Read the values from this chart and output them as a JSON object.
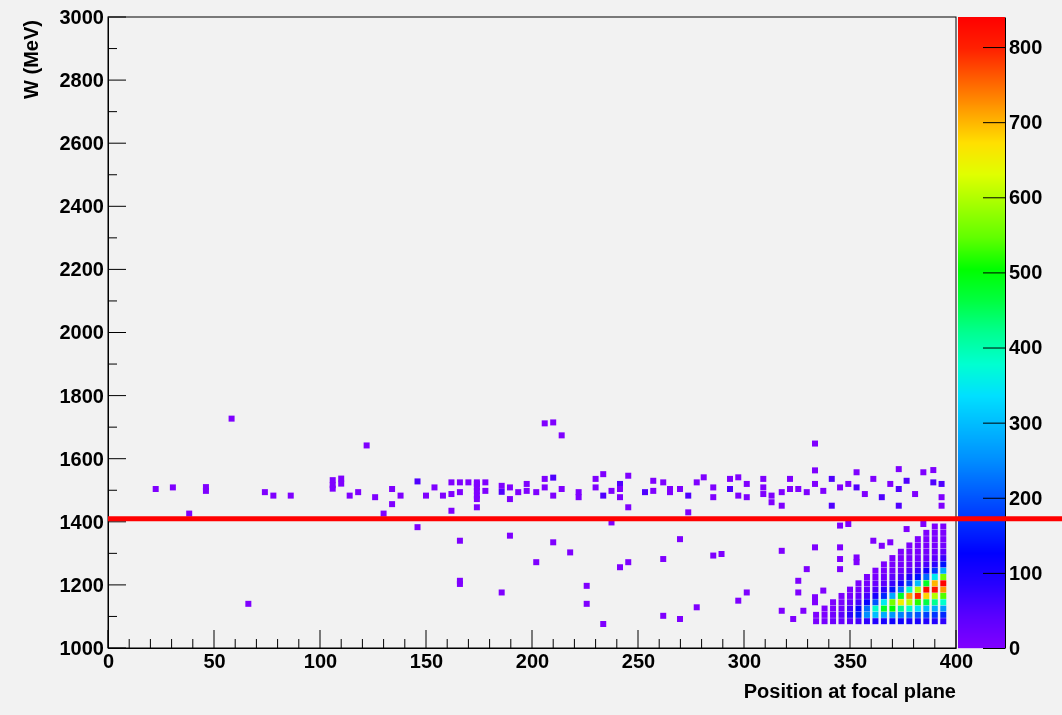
{
  "chart_data": {
    "type": "scatter",
    "xlabel": "Position at focal plane",
    "ylabel": "W (MeV)",
    "xlim": [
      0,
      400
    ],
    "xticks": [
      0,
      50,
      100,
      150,
      200,
      250,
      300,
      350,
      400
    ],
    "ylim": [
      1000,
      3000
    ],
    "yticks": [
      1000,
      1200,
      1400,
      1600,
      1800,
      2000,
      2200,
      2400,
      2600,
      2800,
      3000
    ],
    "clim": [
      0,
      840
    ],
    "cticks": [
      0,
      100,
      200,
      300,
      400,
      500,
      600,
      700,
      800
    ],
    "marker": "square",
    "ref_lines": [
      {
        "axis": "y",
        "value": 1410,
        "color": "#ff0000"
      }
    ],
    "series": [
      {
        "x": [
          334,
          334,
          338,
          338,
          338,
          342,
          342,
          342,
          342,
          346,
          346,
          346,
          346,
          346,
          350,
          350,
          350,
          350,
          350,
          350,
          354,
          354,
          354,
          354,
          354,
          354,
          354,
          358,
          358,
          358,
          358,
          358,
          358,
          358,
          358,
          362,
          362,
          362,
          362,
          362,
          362,
          362,
          362,
          362,
          366,
          366,
          366,
          366,
          366,
          366,
          366,
          366,
          366,
          366,
          370,
          370,
          370,
          370,
          370,
          370,
          370,
          370,
          370,
          370,
          370,
          374,
          374,
          374,
          374,
          374,
          374,
          374,
          374,
          374,
          374,
          374,
          374,
          378,
          378,
          378,
          378,
          378,
          378,
          378,
          378,
          378,
          378,
          378,
          378,
          378,
          382,
          382,
          382,
          382,
          382,
          382,
          382,
          382,
          382,
          382,
          382,
          382,
          382,
          382,
          386,
          386,
          386,
          386,
          386,
          386,
          386,
          386,
          386,
          386,
          386,
          386,
          386,
          386,
          386,
          390,
          390,
          390,
          390,
          390,
          390,
          390,
          390,
          390,
          390,
          390,
          390,
          390,
          390,
          390,
          390,
          394,
          394,
          394,
          394,
          394,
          394,
          394,
          394,
          394,
          394,
          394,
          394,
          394,
          394,
          394,
          394,
          22.5,
          30.6,
          46.2,
          46.2,
          38.3,
          58.3,
          66.2,
          74,
          78,
          86.2,
          106,
          106,
          106,
          110,
          110,
          114,
          118,
          122,
          126,
          130,
          134,
          134,
          138,
          146,
          146,
          150,
          154,
          158,
          162,
          162,
          162,
          166,
          170,
          174,
          166,
          166,
          166,
          166,
          174,
          174,
          174,
          174,
          174,
          174,
          178,
          178,
          185.7,
          185.7,
          189.6,
          189.6,
          189.6,
          185.7,
          193.5,
          197.5,
          197.5,
          206,
          210,
          214,
          206,
          210,
          206,
          202,
          210,
          214,
          222,
          222,
          230,
          230,
          233.6,
          233.6,
          237.5,
          241.5,
          241.5,
          245.4,
          241.5,
          245.4,
          253.3,
          257.2,
          261.9,
          257.2,
          265.1,
          265.1,
          269.8,
          273.7,
          273.7,
          277.7,
          281,
          285.5,
          285.5,
          293.4,
          293.4,
          297.3,
          297.3,
          301.3,
          301.3,
          309.1,
          309.1,
          309.1,
          313,
          313,
          317.8,
          317.8,
          321.7,
          321.7,
          325.6,
          329.6,
          333.5,
          333.5,
          333.5,
          337.4,
          341.4,
          341.4,
          345.3,
          349.2,
          353.1,
          353.1,
          357,
          361,
          365,
          369,
          373,
          373,
          373,
          376.7,
          380.7,
          384.6,
          389.3,
          389.3,
          393.2,
          393.2,
          393.2,
          237.5,
          210,
          218,
          202,
          245.4,
          241.5,
          269.8,
          261.9,
          285.5,
          289.4,
          225.8,
          225.8,
          233.6,
          261.9,
          269.8,
          277.7,
          297.3,
          301.3,
          317.8,
          317.8,
          325.6,
          325.6,
          329.6,
          333.5,
          345.3,
          345.3,
          345.3,
          345.3,
          349.2,
          353.1,
          353.1,
          361,
          365,
          369,
          376.7,
          384.6,
          337.4,
          333.5,
          333.5,
          323.2,
          328
        ],
        "values": [
          1085,
          1105,
          1085,
          1105,
          1125,
          1085,
          1105,
          1125,
          1145,
          1085,
          1105,
          1125,
          1145,
          1165,
          1085,
          1105,
          1125,
          1145,
          1165,
          1185,
          1085,
          1105,
          1125,
          1145,
          1165,
          1185,
          1205,
          1085,
          1105,
          1125,
          1145,
          1165,
          1185,
          1205,
          1225,
          1085,
          1105,
          1125,
          1145,
          1165,
          1185,
          1205,
          1225,
          1245,
          1085,
          1105,
          1125,
          1145,
          1165,
          1185,
          1205,
          1225,
          1245,
          1265,
          1085,
          1105,
          1125,
          1145,
          1165,
          1185,
          1205,
          1225,
          1245,
          1265,
          1285,
          1085,
          1105,
          1125,
          1145,
          1165,
          1185,
          1205,
          1225,
          1245,
          1265,
          1285,
          1305,
          1085,
          1105,
          1125,
          1145,
          1165,
          1185,
          1205,
          1225,
          1245,
          1265,
          1285,
          1305,
          1325,
          1085,
          1105,
          1125,
          1145,
          1165,
          1185,
          1205,
          1225,
          1245,
          1265,
          1285,
          1305,
          1325,
          1345,
          1085,
          1105,
          1125,
          1145,
          1165,
          1185,
          1205,
          1225,
          1245,
          1265,
          1285,
          1305,
          1325,
          1345,
          1365,
          1085,
          1105,
          1125,
          1145,
          1165,
          1185,
          1205,
          1225,
          1245,
          1265,
          1285,
          1305,
          1325,
          1345,
          1365,
          1385,
          1085,
          1105,
          1125,
          1145,
          1165,
          1185,
          1205,
          1225,
          1245,
          1265,
          1285,
          1305,
          1325,
          1345,
          1365,
          1385,
          1504,
          1509,
          1510,
          1498,
          1426,
          1727,
          1140,
          1494,
          1483,
          1483,
          1532,
          1516,
          1505,
          1537,
          1521,
          1483,
          1494,
          1642,
          1478,
          1426,
          1504,
          1456,
          1483,
          1528,
          1383,
          1483,
          1509,
          1483,
          1488,
          1435,
          1525,
          1525,
          1525,
          1525,
          1494,
          1340,
          1213,
          1203,
          1520,
          1509,
          1498,
          1483,
          1472,
          1446,
          1525,
          1498,
          1514,
          1495,
          1509,
          1472,
          1356,
          1176,
          1494,
          1520,
          1498,
          1712,
          1715,
          1674,
          1536,
          1540,
          1509,
          1494,
          1483,
          1504,
          1494,
          1478,
          1536,
          1509,
          1551,
          1483,
          1498,
          1520,
          1504,
          1546,
          1478,
          1446,
          1494,
          1530,
          1525,
          1498,
          1504,
          1494,
          1504,
          1483,
          1430,
          1525,
          1541,
          1509,
          1478,
          1504,
          1536,
          1541,
          1483,
          1520,
          1478,
          1536,
          1509,
          1488,
          1483,
          1462,
          1494,
          1451,
          1536,
          1504,
          1504,
          1494,
          1648,
          1563,
          1520,
          1498,
          1536,
          1451,
          1509,
          1520,
          1509,
          1557,
          1488,
          1536,
          1478,
          1520,
          1567,
          1504,
          1451,
          1530,
          1488,
          1557,
          1564,
          1525,
          1520,
          1478,
          1451,
          1398,
          1335,
          1303,
          1272,
          1272,
          1256,
          1345,
          1282,
          1293,
          1298,
          1197,
          1140,
          1076,
          1102,
          1092,
          1129,
          1150,
          1176,
          1308,
          1118,
          1213,
          1176,
          1250,
          1319,
          1319,
          1282,
          1250,
          1388,
          1393,
          1287,
          1272,
          1340,
          1324,
          1335,
          1377,
          1393,
          1182,
          1161,
          1145,
          1092,
          1118
        ],
        "cvalues": [
          5,
          2,
          10,
          5,
          2,
          20,
          15,
          5,
          2,
          30,
          40,
          20,
          8,
          3,
          40,
          80,
          60,
          30,
          10,
          5,
          60,
          150,
          120,
          60,
          30,
          12,
          5,
          80,
          250,
          220,
          120,
          60,
          30,
          12,
          5,
          90,
          300,
          380,
          200,
          100,
          50,
          25,
          10,
          4,
          100,
          280,
          480,
          350,
          160,
          80,
          40,
          20,
          8,
          3,
          110,
          260,
          500,
          560,
          280,
          140,
          70,
          35,
          15,
          6,
          3,
          110,
          240,
          420,
          650,
          480,
          220,
          110,
          55,
          25,
          12,
          5,
          2,
          100,
          220,
          380,
          600,
          720,
          380,
          180,
          90,
          45,
          20,
          10,
          5,
          2,
          100,
          200,
          340,
          520,
          800,
          600,
          300,
          140,
          70,
          35,
          15,
          8,
          4,
          2,
          90,
          180,
          300,
          460,
          680,
          830,
          480,
          220,
          110,
          55,
          25,
          12,
          6,
          3,
          2,
          90,
          170,
          280,
          420,
          600,
          820,
          700,
          350,
          170,
          80,
          40,
          20,
          10,
          5,
          3,
          2,
          80,
          160,
          260,
          380,
          540,
          720,
          840,
          560,
          280,
          140,
          70,
          35,
          15,
          8,
          4,
          3,
          1,
          1,
          1,
          1,
          1,
          1,
          1,
          1,
          1,
          1,
          1,
          1,
          1,
          1,
          1,
          1,
          1,
          1,
          1,
          1,
          1,
          1,
          1,
          50,
          1,
          1,
          1,
          1,
          1,
          1,
          1,
          1,
          1,
          1,
          1,
          1,
          1,
          1,
          1,
          1,
          1,
          1,
          1,
          1,
          1,
          1,
          1,
          50,
          1,
          1,
          1,
          1,
          1,
          1,
          1,
          1,
          1,
          1,
          1,
          50,
          1,
          1,
          1,
          1,
          1,
          1,
          1,
          1,
          1,
          50,
          1,
          50,
          1,
          1,
          1,
          1,
          50,
          1,
          1,
          1,
          1,
          1,
          1,
          50,
          1,
          1,
          1,
          1,
          1,
          50,
          1,
          1,
          1,
          1,
          1,
          1,
          1,
          1,
          1,
          1,
          1,
          1,
          1,
          1,
          1,
          1,
          1,
          1,
          1,
          1,
          50,
          50,
          1,
          1,
          50,
          1,
          1,
          1,
          50,
          1,
          1,
          50,
          50,
          50,
          1,
          1,
          1,
          50,
          50,
          1,
          1,
          1,
          1,
          1,
          1,
          1,
          1,
          1,
          1,
          1,
          1,
          1,
          1,
          1,
          1,
          1,
          1,
          1,
          1,
          1,
          1,
          1,
          1,
          1,
          1,
          1,
          1,
          1,
          1,
          1,
          1,
          1,
          1,
          1,
          1,
          1,
          1,
          1,
          1,
          1,
          1,
          1
        ]
      }
    ]
  }
}
